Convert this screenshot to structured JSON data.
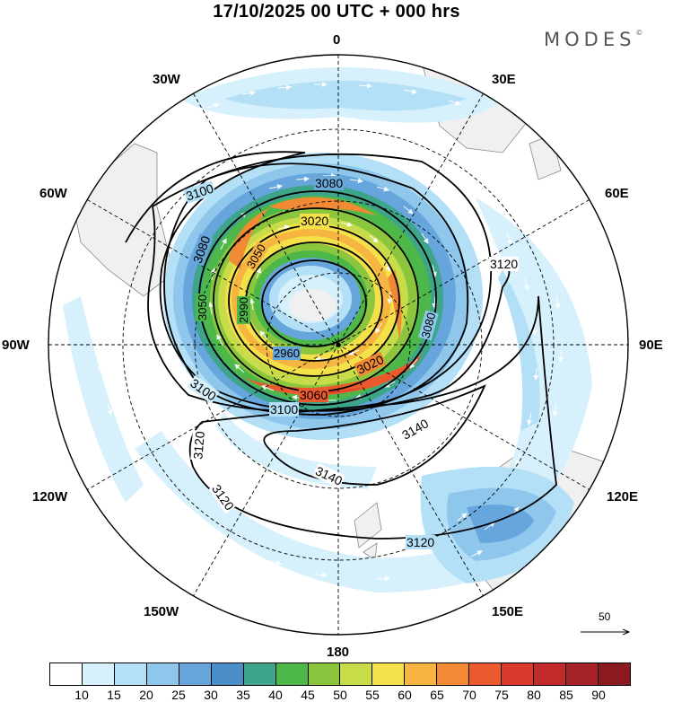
{
  "title": "17/10/2025  00 UTC  + 000 hrs",
  "brand": "MODES",
  "brand_mark": "©",
  "longitude_labels": {
    "lon_0": "0",
    "lon_30e": "30E",
    "lon_60e": "60E",
    "lon_90e": "90E",
    "lon_120e": "120E",
    "lon_150e": "150E",
    "lon_180": "180",
    "lon_150w": "150W",
    "lon_120w": "120W",
    "lon_90w": "90W",
    "lon_60w": "60W",
    "lon_30w": "30W"
  },
  "contours": {
    "c2960": "2960",
    "c2990": "2990",
    "c3020a": "3020",
    "c3020b": "3020",
    "c3050a": "3050",
    "c3050b": "3050",
    "c3060": "3060",
    "c3080a": "3080",
    "c3080b": "3080",
    "c3100a": "3100",
    "c3100b": "3100",
    "c3100c": "3100",
    "c3120a": "3120",
    "c3120b": "3120",
    "c3120c": "3120",
    "c3120d": "3120",
    "c3140a": "3140",
    "c3140b": "3140",
    "c3080c": "3080"
  },
  "reference_vector": {
    "label": "50"
  },
  "colorbar": {
    "ticks": [
      "10",
      "15",
      "20",
      "25",
      "30",
      "35",
      "40",
      "45",
      "50",
      "55",
      "60",
      "65",
      "70",
      "75",
      "80",
      "85",
      "90"
    ],
    "colors": [
      "#ffffff",
      "#d6f0fc",
      "#b4e0f7",
      "#8ec6ec",
      "#66a6dc",
      "#4a8fc9",
      "#3ea48a",
      "#4db849",
      "#8cc63f",
      "#c7dc48",
      "#f4e14a",
      "#f6b441",
      "#f28a35",
      "#ea5a2e",
      "#d93a2b",
      "#c02a2a",
      "#a52226",
      "#8a1a1e"
    ]
  }
}
